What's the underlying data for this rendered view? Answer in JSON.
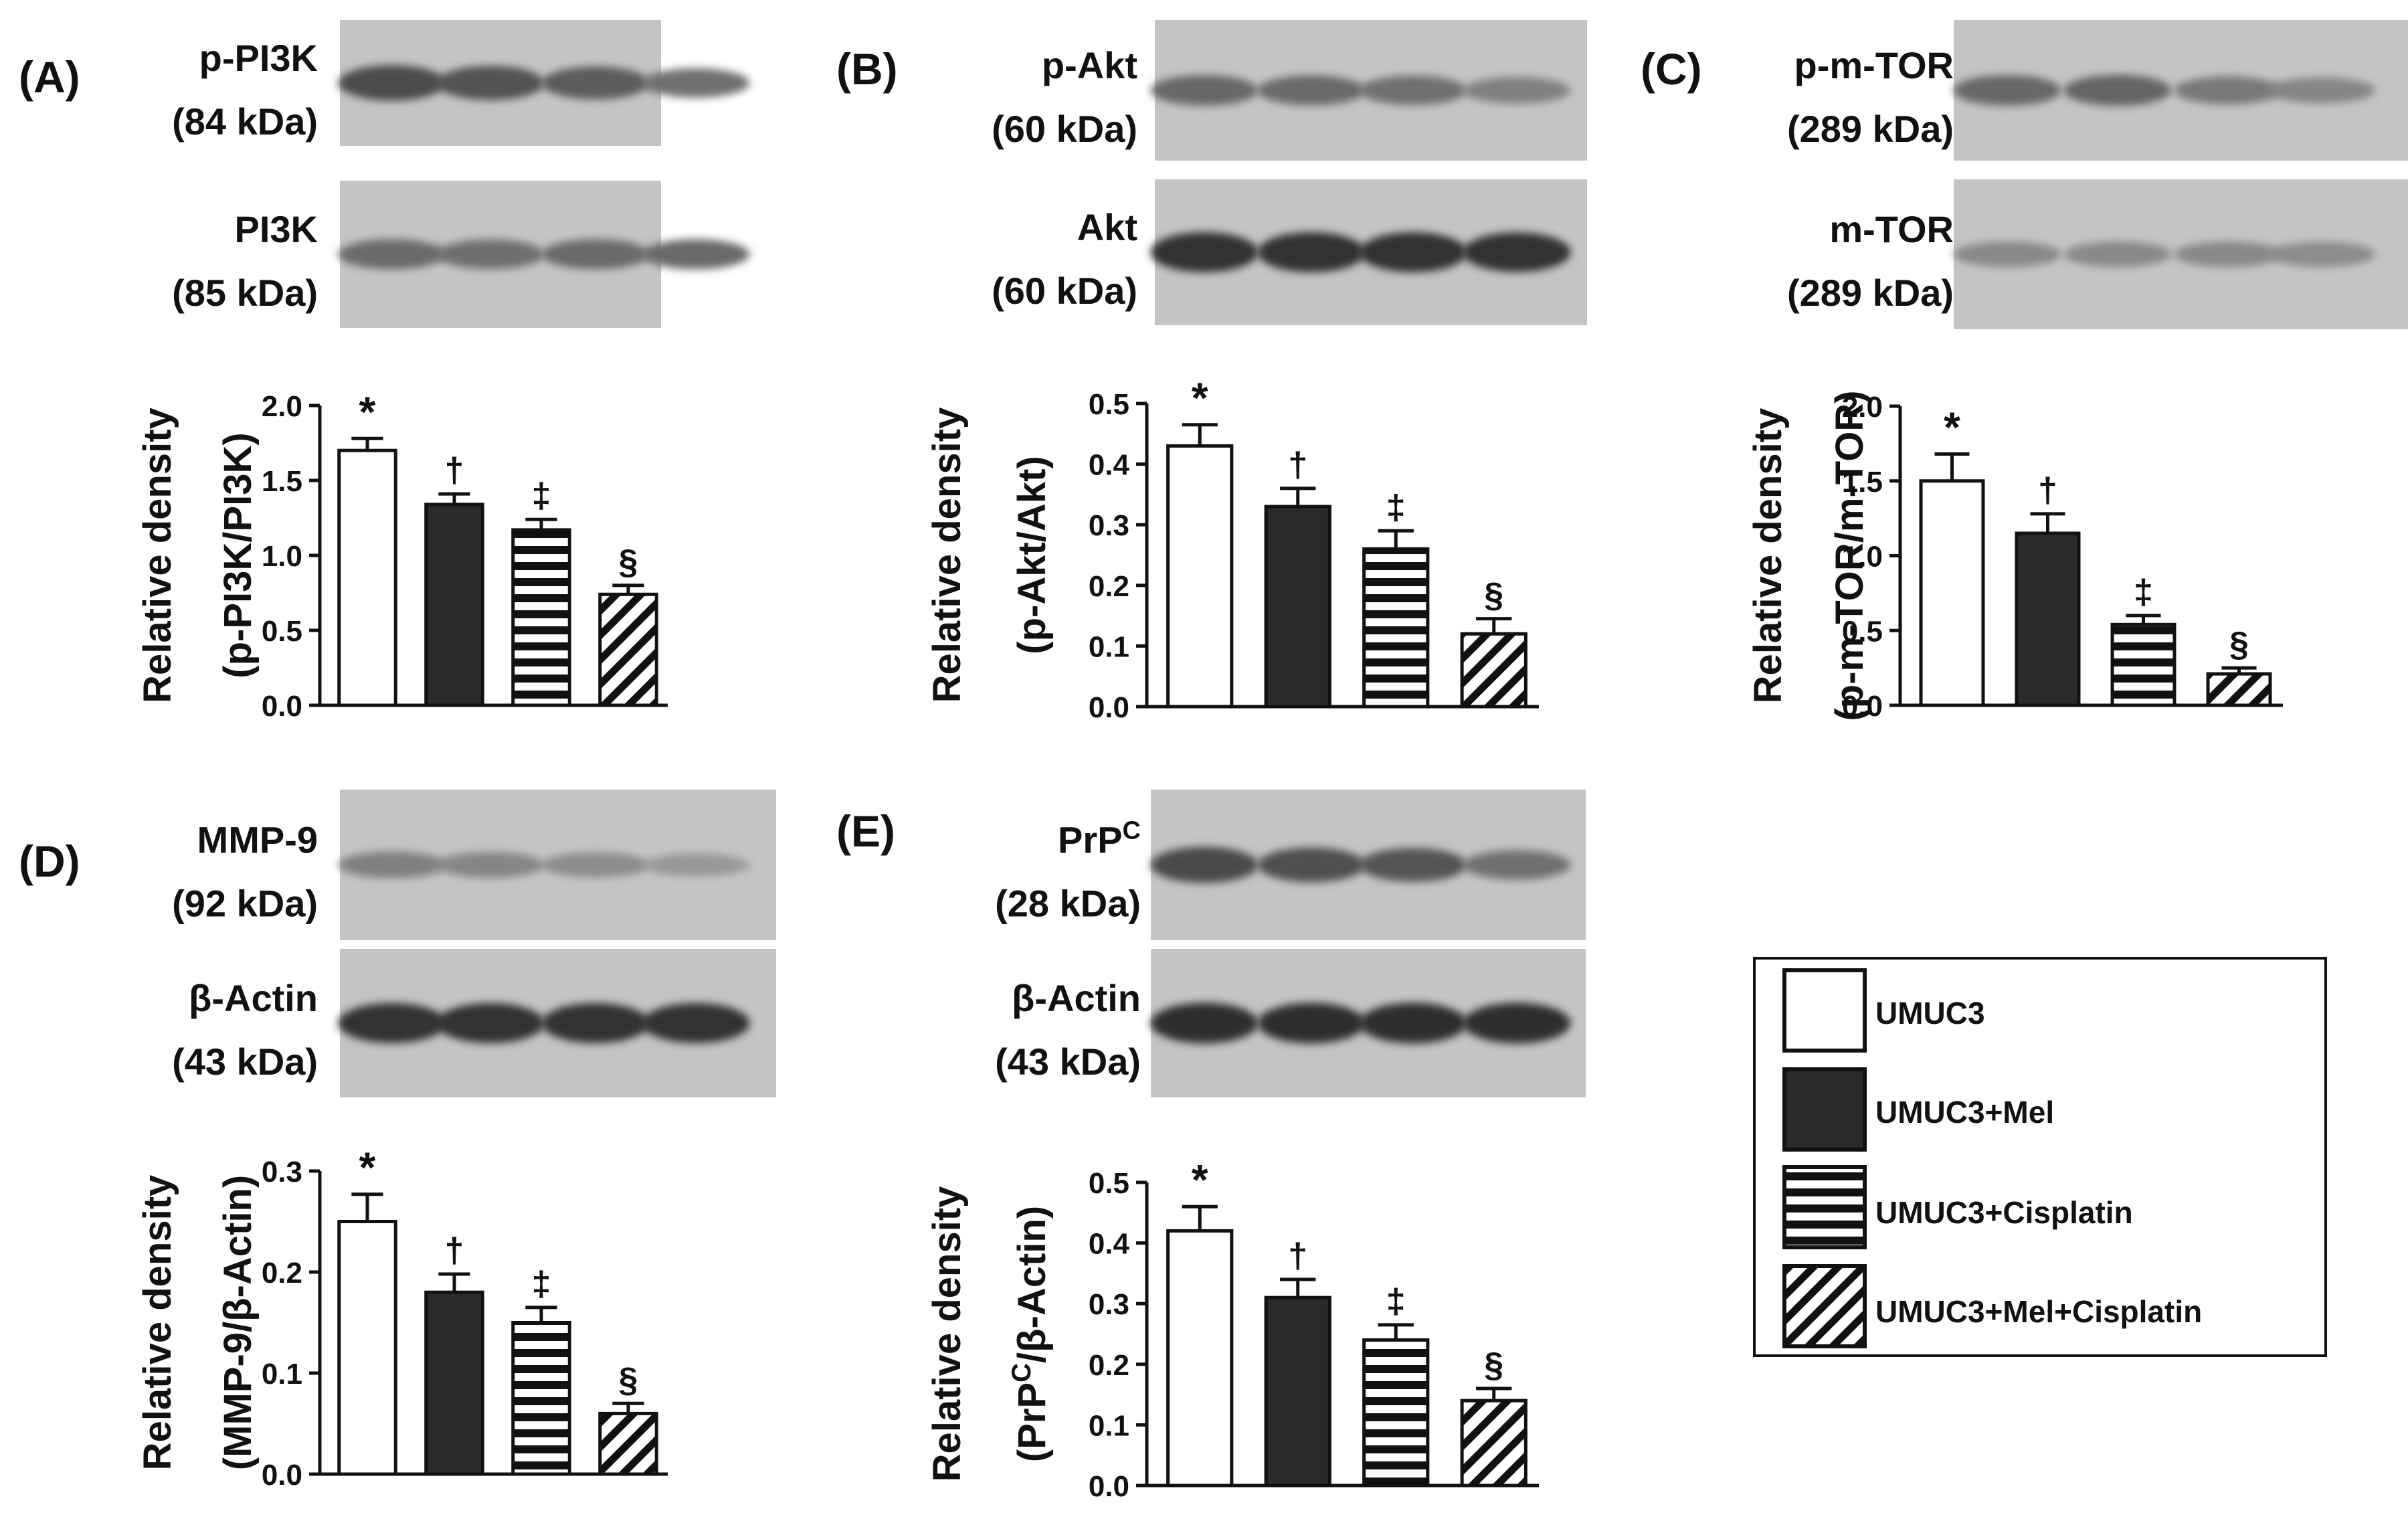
{
  "groups": [
    {
      "name": "UMUC3",
      "pattern": "white"
    },
    {
      "name": "UMUC3+Mel",
      "pattern": "black"
    },
    {
      "name": "UMUC3+Cisplatin",
      "pattern": "horizontal"
    },
    {
      "name": "UMUC3+Mel+Cisplatin",
      "pattern": "diagonal"
    }
  ],
  "blot_style": {
    "background": "#c4c4c4",
    "band_color": "#3a3a3a"
  },
  "panels": [
    {
      "letter": "(A)",
      "blots": [
        {
          "protein": "p-PI3K",
          "weight": "(84 kDa)",
          "intensities": [
            0.78,
            0.74,
            0.68,
            0.55
          ]
        },
        {
          "protein": "PI3K",
          "weight": "(85 kDa)",
          "intensities": [
            0.58,
            0.56,
            0.58,
            0.58
          ]
        }
      ],
      "chart_data": {
        "type": "bar",
        "categories": [
          "UMUC3",
          "UMUC3+Mel",
          "UMUC3+Cisplatin",
          "UMUC3+Mel+Cisplatin"
        ],
        "values": [
          1.7,
          1.34,
          1.17,
          0.74
        ],
        "errors": [
          0.08,
          0.07,
          0.07,
          0.06
        ],
        "annotations": [
          "*",
          "†",
          "‡",
          "§"
        ],
        "ylabel": [
          "Relative density",
          "(p-PI3K/PI3K)"
        ],
        "ylim": [
          0,
          2.0
        ],
        "yticks": [
          "0.0",
          "0.5",
          "1.0",
          "1.5",
          "2.0"
        ]
      }
    },
    {
      "letter": "(B)",
      "blots": [
        {
          "protein": "p-Akt",
          "weight": "(60 kDa)",
          "intensities": [
            0.6,
            0.58,
            0.55,
            0.45
          ]
        },
        {
          "protein": "Akt",
          "weight": "(60 kDa)",
          "intensities": [
            0.95,
            0.95,
            0.95,
            0.93
          ]
        }
      ],
      "chart_data": {
        "type": "bar",
        "categories": [
          "UMUC3",
          "UMUC3+Mel",
          "UMUC3+Cisplatin",
          "UMUC3+Mel+Cisplatin"
        ],
        "values": [
          0.43,
          0.33,
          0.26,
          0.12
        ],
        "errors": [
          0.035,
          0.03,
          0.03,
          0.025
        ],
        "annotations": [
          "*",
          "†",
          "‡",
          "§"
        ],
        "ylabel": [
          "Relative density",
          "(p-Akt/Akt)"
        ],
        "ylim": [
          0,
          0.5
        ],
        "yticks": [
          "0.0",
          "0.1",
          "0.2",
          "0.3",
          "0.4",
          "0.5"
        ]
      }
    },
    {
      "letter": "(C)",
      "blots": [
        {
          "protein": "p-m-TOR",
          "weight": "(289 kDa)",
          "intensities": [
            0.6,
            0.62,
            0.5,
            0.42
          ]
        },
        {
          "protein": "m-TOR",
          "weight": "(289 kDa)",
          "intensities": [
            0.4,
            0.4,
            0.4,
            0.38
          ]
        }
      ],
      "chart_data": {
        "type": "bar",
        "categories": [
          "UMUC3",
          "UMUC3+Mel",
          "UMUC3+Cisplatin",
          "UMUC3+Mel+Cisplatin"
        ],
        "values": [
          1.5,
          1.15,
          0.54,
          0.21
        ],
        "errors": [
          0.18,
          0.13,
          0.06,
          0.04
        ],
        "annotations": [
          "*",
          "†",
          "‡",
          "§"
        ],
        "ylabel": [
          "Relative density",
          "(p-m-TOR/m-TOR)"
        ],
        "ylim": [
          0,
          2.0
        ],
        "yticks": [
          "0.0",
          "0.5",
          "1.0",
          "1.5",
          "2.0"
        ]
      }
    },
    {
      "letter": "(D)",
      "blots": [
        {
          "protein": "MMP-9",
          "weight": "(92 kDa)",
          "intensities": [
            0.45,
            0.42,
            0.38,
            0.3
          ]
        },
        {
          "protein": "β-Actin",
          "weight": "(43 kDa)",
          "intensities": [
            0.95,
            0.95,
            0.95,
            0.95
          ]
        }
      ],
      "chart_data": {
        "type": "bar",
        "categories": [
          "UMUC3",
          "UMUC3+Mel",
          "UMUC3+Cisplatin",
          "UMUC3+Mel+Cisplatin"
        ],
        "values": [
          0.25,
          0.18,
          0.15,
          0.06
        ],
        "errors": [
          0.027,
          0.018,
          0.015,
          0.01
        ],
        "annotations": [
          "*",
          "†",
          "‡",
          "§"
        ],
        "ylabel": [
          "Relative density",
          "(MMP-9/β-Actin)"
        ],
        "ylim": [
          0,
          0.3
        ],
        "yticks": [
          "0.0",
          "0.1",
          "0.2",
          "0.3"
        ]
      }
    },
    {
      "letter": "(E)",
      "blots": [
        {
          "protein": "PrP",
          "protein_sup": "C",
          "weight": "(28 kDa)",
          "intensities": [
            0.8,
            0.75,
            0.72,
            0.55
          ]
        },
        {
          "protein": "β-Actin",
          "weight": "(43 kDa)",
          "intensities": [
            0.97,
            0.97,
            0.97,
            0.97
          ]
        }
      ],
      "chart_data": {
        "type": "bar",
        "categories": [
          "UMUC3",
          "UMUC3+Mel",
          "UMUC3+Cisplatin",
          "UMUC3+Mel+Cisplatin"
        ],
        "values": [
          0.42,
          0.31,
          0.24,
          0.14
        ],
        "errors": [
          0.04,
          0.03,
          0.025,
          0.02
        ],
        "annotations": [
          "*",
          "†",
          "‡",
          "§"
        ],
        "ylabel": [
          "Relative density",
          "(PrP",
          "C",
          "/β-Actin)"
        ],
        "ylim": [
          0,
          0.5
        ],
        "yticks": [
          "0.0",
          "0.1",
          "0.2",
          "0.3",
          "0.4",
          "0.5"
        ]
      }
    }
  ]
}
